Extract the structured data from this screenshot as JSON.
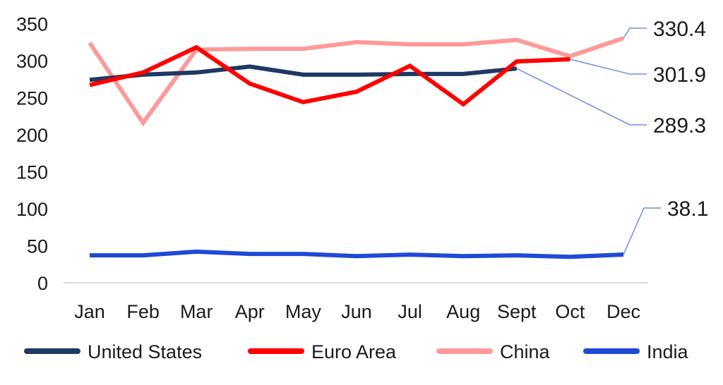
{
  "chart_data": {
    "type": "line",
    "title": "",
    "xlabel": "",
    "ylabel": "",
    "categories": [
      "Jan",
      "Feb",
      "Mar",
      "Apr",
      "May",
      "Jun",
      "Jul",
      "Aug",
      "Sept",
      "Oct",
      "Dec"
    ],
    "ylim": [
      0,
      350
    ],
    "yticks": [
      "0",
      "50",
      "100",
      "150",
      "200",
      "250",
      "300",
      "350"
    ],
    "grid": false,
    "legend_position": "bottom",
    "series": [
      {
        "name": "United States",
        "color": "#1f3864",
        "values": [
          274,
          281,
          284,
          292,
          281,
          281,
          282,
          282,
          289.3,
          null,
          null
        ]
      },
      {
        "name": "Euro Area",
        "color": "#ff0000",
        "values": [
          267,
          284,
          318,
          269,
          244,
          258,
          293,
          241,
          299,
          301.9,
          null
        ]
      },
      {
        "name": "China",
        "color": "#ff9999",
        "values": [
          324,
          216,
          315,
          316,
          316,
          325,
          322,
          322,
          328,
          306,
          330.4
        ]
      },
      {
        "name": "India",
        "color": "#1f49d6",
        "values": [
          37,
          37,
          42,
          39,
          39,
          36,
          38,
          36,
          37,
          35,
          38.1
        ]
      }
    ],
    "callouts": [
      {
        "label": "330.4",
        "series": "China"
      },
      {
        "label": "301.9",
        "series": "Euro Area"
      },
      {
        "label": "289.3",
        "series": "United States"
      },
      {
        "label": "38.1",
        "series": "India"
      }
    ],
    "leader_color": "#6d8ee8"
  }
}
